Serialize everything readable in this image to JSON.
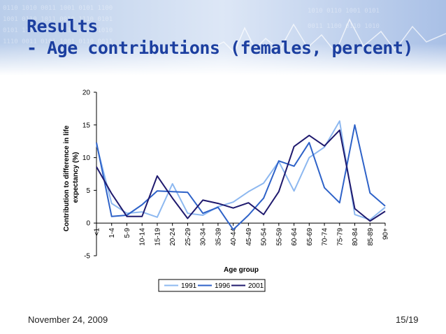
{
  "slide": {
    "title_line1": "Results",
    "title_line2": "- Age contributions (females, percent)",
    "date": "November 24, 2009",
    "page": "15/19"
  },
  "chart_data": {
    "type": "line",
    "title": "",
    "xlabel": "Age group",
    "ylabel": "Contribution to difference in life expectancy (%)",
    "ylim": [
      -5,
      20
    ],
    "yticks": [
      -5,
      0,
      5,
      10,
      15,
      20
    ],
    "grid": false,
    "legend": "bottom",
    "categories": [
      "<1",
      "1-4",
      "5-9",
      "10-14",
      "15-19",
      "20-24",
      "25-29",
      "30-34",
      "35-39",
      "40-44",
      "45-49",
      "50-54",
      "55-59",
      "60-64",
      "65-69",
      "70-74",
      "75-79",
      "80-84",
      "85-89",
      "90+"
    ],
    "series": [
      {
        "name": "1991",
        "color": "#8db8f0",
        "values": [
          12.0,
          3.0,
          1.5,
          1.7,
          0.9,
          6.0,
          1.5,
          1.2,
          2.5,
          3.2,
          4.8,
          6.1,
          9.4,
          4.9,
          10.0,
          11.6,
          15.6,
          1.3,
          0.5,
          2.4
        ]
      },
      {
        "name": "1996",
        "color": "#2e62c8",
        "values": [
          12.3,
          1.0,
          1.2,
          2.8,
          4.9,
          4.8,
          4.7,
          1.5,
          2.4,
          -1.0,
          1.2,
          3.8,
          9.5,
          8.7,
          12.3,
          5.4,
          3.1,
          15.0,
          4.6,
          2.6
        ]
      },
      {
        "name": "2001",
        "color": "#1f1a6e",
        "values": [
          8.6,
          4.5,
          1.0,
          1.0,
          7.2,
          3.8,
          0.7,
          3.5,
          3.0,
          2.3,
          3.1,
          1.3,
          4.8,
          11.7,
          13.4,
          11.8,
          14.2,
          2.2,
          0.3,
          1.8
        ]
      }
    ]
  }
}
